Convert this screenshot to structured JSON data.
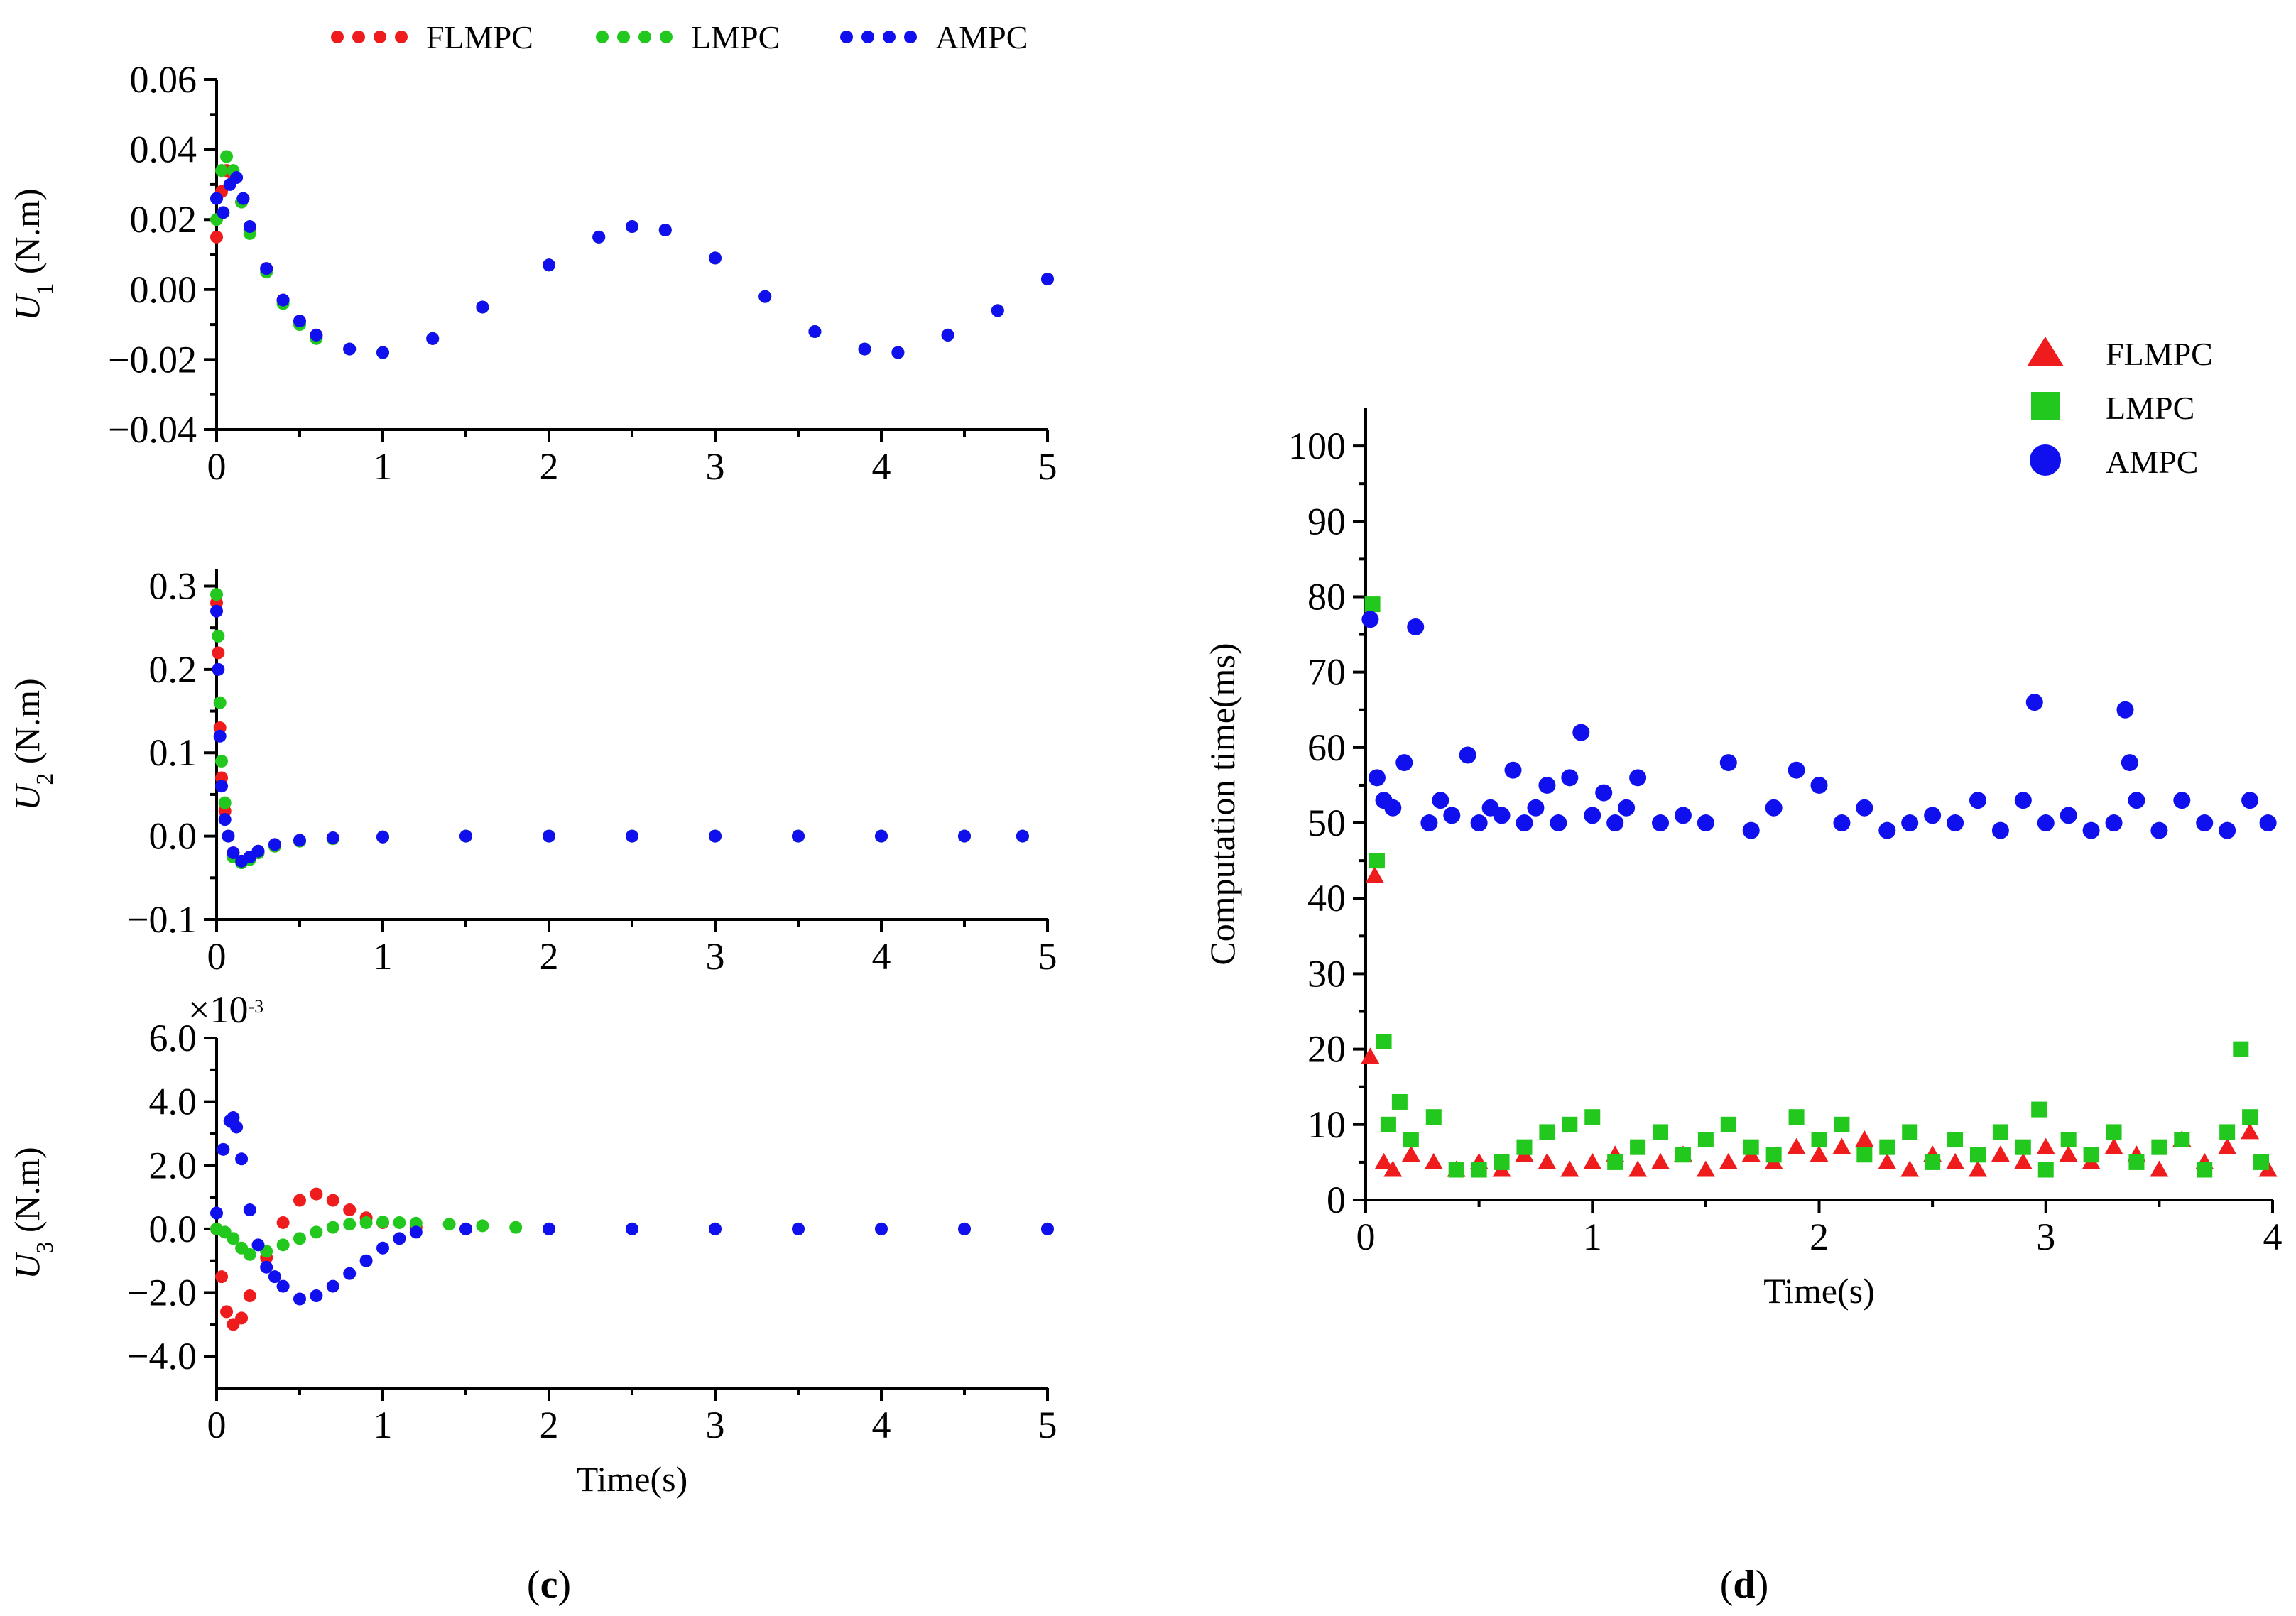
{
  "colors": {
    "FLMPC": "#ee1c1c",
    "LMPC": "#22c81e",
    "AMPC": "#1010ee"
  },
  "panel_labels": {
    "c": "c",
    "d": "d"
  },
  "chart_data": [
    {
      "id": "u1",
      "type": "scatter",
      "ylabel": "U",
      "ylabel_sub": "1",
      "ylabel_unit": " (N.m)",
      "xlabel": "",
      "xlim": [
        0,
        5
      ],
      "ylim": [
        -0.04,
        0.06
      ],
      "xticks": [
        "0",
        "1",
        "2",
        "3",
        "4",
        "5"
      ],
      "yticks": [
        "0.06",
        "0.04",
        "0.02",
        "0.00",
        "-0.02",
        "-0.04"
      ],
      "legend": [
        "FLMPC",
        "LMPC",
        "AMPC"
      ],
      "series": [
        {
          "name": "FLMPC",
          "x": [
            0,
            0.03,
            0.06,
            0.1,
            0.15,
            0.2,
            0.3,
            0.4,
            0.5,
            0.6,
            0.8,
            1.0,
            1.3,
            1.6,
            2.0,
            2.3,
            2.5,
            2.7,
            3.0,
            3.3,
            3.6,
            3.9,
            4.1,
            4.4,
            4.7,
            5.0
          ],
          "y": [
            0.015,
            0.028,
            0.034,
            0.033,
            0.025,
            0.017,
            0.006,
            -0.003,
            -0.009,
            -0.013,
            -0.017,
            -0.018,
            -0.014,
            -0.005,
            0.007,
            0.015,
            0.018,
            0.017,
            0.009,
            -0.002,
            -0.012,
            -0.017,
            -0.018,
            -0.013,
            -0.006,
            0.003
          ]
        },
        {
          "name": "LMPC",
          "x": [
            0,
            0.03,
            0.06,
            0.1,
            0.15,
            0.2,
            0.3,
            0.4,
            0.5,
            0.6,
            0.8,
            1.0,
            1.3,
            1.6,
            2.0,
            2.3,
            2.5,
            2.7,
            3.0,
            3.3,
            3.6,
            3.9,
            4.1,
            4.4,
            4.7,
            5.0
          ],
          "y": [
            0.02,
            0.034,
            0.038,
            0.034,
            0.025,
            0.016,
            0.005,
            -0.004,
            -0.01,
            -0.014,
            -0.017,
            -0.018,
            -0.014,
            -0.005,
            0.007,
            0.015,
            0.018,
            0.017,
            0.009,
            -0.002,
            -0.012,
            -0.017,
            -0.018,
            -0.013,
            -0.006,
            0.003
          ]
        },
        {
          "name": "AMPC",
          "x": [
            0,
            0.04,
            0.08,
            0.12,
            0.16,
            0.2,
            0.3,
            0.4,
            0.5,
            0.6,
            0.8,
            1.0,
            1.3,
            1.6,
            2.0,
            2.3,
            2.5,
            2.7,
            3.0,
            3.3,
            3.6,
            3.9,
            4.1,
            4.4,
            4.7,
            5.0
          ],
          "y": [
            0.026,
            0.022,
            0.03,
            0.032,
            0.026,
            0.018,
            0.006,
            -0.003,
            -0.009,
            -0.013,
            -0.017,
            -0.018,
            -0.014,
            -0.005,
            0.007,
            0.015,
            0.018,
            0.017,
            0.009,
            -0.002,
            -0.012,
            -0.017,
            -0.018,
            -0.013,
            -0.006,
            0.003
          ]
        }
      ]
    },
    {
      "id": "u2",
      "type": "scatter",
      "ylabel": "U",
      "ylabel_sub": "2",
      "ylabel_unit": " (N.m)",
      "xlabel": "",
      "xlim": [
        0,
        5
      ],
      "ylim": [
        -0.1,
        0.32
      ],
      "xticks": [
        "0",
        "1",
        "2",
        "3",
        "4",
        "5"
      ],
      "yticks": [
        "0.3",
        "0.2",
        "0.1",
        "0.0",
        "-0.1"
      ],
      "series": [
        {
          "name": "FLMPC",
          "x": [
            0,
            0.01,
            0.02,
            0.03,
            0.05,
            0.07,
            0.1,
            0.15,
            0.2,
            0.25,
            0.35,
            0.5,
            0.7,
            1.0,
            1.5,
            2.0,
            2.5,
            3.0,
            3.5,
            4.0,
            4.5,
            4.85
          ],
          "y": [
            0.28,
            0.22,
            0.13,
            0.07,
            0.03,
            0.0,
            -0.02,
            -0.03,
            -0.025,
            -0.02,
            -0.012,
            -0.006,
            -0.003,
            -0.001,
            0,
            0,
            0,
            0,
            0,
            0,
            0,
            0
          ]
        },
        {
          "name": "LMPC",
          "x": [
            0,
            0.01,
            0.02,
            0.03,
            0.05,
            0.07,
            0.1,
            0.15,
            0.2,
            0.25,
            0.35,
            0.5,
            0.7,
            1.0,
            1.5,
            2.0,
            2.5,
            3.0,
            3.5,
            4.0,
            4.5,
            4.85
          ],
          "y": [
            0.29,
            0.24,
            0.16,
            0.09,
            0.04,
            0.0,
            -0.025,
            -0.032,
            -0.028,
            -0.02,
            -0.012,
            -0.006,
            -0.003,
            -0.001,
            0,
            0,
            0,
            0,
            0,
            0,
            0,
            0
          ]
        },
        {
          "name": "AMPC",
          "x": [
            0,
            0.01,
            0.02,
            0.03,
            0.05,
            0.07,
            0.1,
            0.15,
            0.2,
            0.25,
            0.35,
            0.5,
            0.7,
            1.0,
            1.5,
            2.0,
            2.5,
            3.0,
            3.5,
            4.0,
            4.5,
            4.85
          ],
          "y": [
            0.27,
            0.2,
            0.12,
            0.06,
            0.02,
            0.0,
            -0.02,
            -0.03,
            -0.025,
            -0.018,
            -0.01,
            -0.005,
            -0.002,
            -0.001,
            0,
            0,
            0,
            0,
            0,
            0,
            0,
            0
          ]
        }
      ]
    },
    {
      "id": "u3",
      "type": "scatter",
      "ylabel": "U",
      "ylabel_sub": "3",
      "ylabel_unit": " (N.m)",
      "xlabel": "Time(s)",
      "xlim": [
        0,
        5
      ],
      "ylim": [
        -5.0,
        6.0
      ],
      "xticks": [
        "0",
        "1",
        "2",
        "3",
        "4",
        "5"
      ],
      "yticks": [
        "6.0",
        "4.0",
        "2.0",
        "0.0",
        "-2.0",
        "-4.0"
      ],
      "multiplier": "×10",
      "multiplier_exp": "-3",
      "series": [
        {
          "name": "FLMPC",
          "x": [
            0,
            0.03,
            0.06,
            0.1,
            0.15,
            0.2,
            0.3,
            0.4,
            0.5,
            0.6,
            0.7,
            0.8,
            0.9,
            1.0,
            1.2,
            1.5,
            2.0,
            2.5,
            3.0,
            3.5,
            4.0,
            4.5,
            5.0
          ],
          "y": [
            0,
            -1.5,
            -2.6,
            -3.0,
            -2.8,
            -2.1,
            -0.9,
            0.2,
            0.9,
            1.1,
            0.9,
            0.6,
            0.35,
            0.2,
            0.05,
            0,
            0,
            0,
            0,
            0,
            0,
            0,
            0
          ]
        },
        {
          "name": "LMPC",
          "x": [
            0,
            0.05,
            0.1,
            0.15,
            0.2,
            0.3,
            0.4,
            0.5,
            0.6,
            0.7,
            0.8,
            0.9,
            1.0,
            1.1,
            1.2,
            1.4,
            1.6,
            1.8,
            2.0,
            2.5,
            3.0,
            3.5,
            4.0,
            4.5,
            5.0
          ],
          "y": [
            0,
            -0.1,
            -0.3,
            -0.6,
            -0.8,
            -0.7,
            -0.5,
            -0.3,
            -0.1,
            0.05,
            0.15,
            0.2,
            0.22,
            0.2,
            0.18,
            0.15,
            0.1,
            0.05,
            0,
            0,
            0,
            0,
            0,
            0,
            0
          ]
        },
        {
          "name": "AMPC",
          "x": [
            0,
            0.04,
            0.08,
            0.1,
            0.12,
            0.15,
            0.2,
            0.25,
            0.3,
            0.35,
            0.4,
            0.5,
            0.6,
            0.7,
            0.8,
            0.9,
            1.0,
            1.1,
            1.2,
            1.5,
            2.0,
            2.5,
            3.0,
            3.5,
            4.0,
            4.5,
            5.0
          ],
          "y": [
            0.5,
            2.5,
            3.4,
            3.5,
            3.2,
            2.2,
            0.6,
            -0.5,
            -1.2,
            -1.5,
            -1.8,
            -2.2,
            -2.1,
            -1.8,
            -1.4,
            -1.0,
            -0.6,
            -0.3,
            -0.1,
            0,
            0,
            0,
            0,
            0,
            0,
            0,
            0
          ]
        }
      ]
    },
    {
      "id": "time",
      "type": "scatter",
      "ylabel": "Computation  time(ms)",
      "xlabel": "Time(s)",
      "xlim": [
        0,
        4
      ],
      "ylim": [
        0,
        105
      ],
      "xticks": [
        "0",
        "1",
        "2",
        "3",
        "4"
      ],
      "yticks": [
        "100",
        "90",
        "80",
        "70",
        "60",
        "50",
        "40",
        "30",
        "20",
        "10",
        "0"
      ],
      "legend": [
        "FLMPC",
        "LMPC",
        "AMPC"
      ],
      "series": [
        {
          "name": "FLMPC",
          "marker": "triangle",
          "x": [
            0.02,
            0.04,
            0.08,
            0.12,
            0.2,
            0.3,
            0.4,
            0.5,
            0.6,
            0.7,
            0.8,
            0.9,
            1.0,
            1.1,
            1.2,
            1.3,
            1.4,
            1.5,
            1.6,
            1.7,
            1.8,
            1.9,
            2.0,
            2.1,
            2.2,
            2.3,
            2.4,
            2.5,
            2.6,
            2.7,
            2.8,
            2.9,
            3.0,
            3.1,
            3.2,
            3.3,
            3.4,
            3.5,
            3.6,
            3.7,
            3.8,
            3.9,
            3.98
          ],
          "y": [
            19,
            43,
            5,
            4,
            6,
            5,
            4,
            5,
            4,
            6,
            5,
            4,
            5,
            6,
            4,
            5,
            6,
            4,
            5,
            6,
            5,
            7,
            6,
            7,
            8,
            5,
            4,
            6,
            5,
            4,
            6,
            5,
            7,
            6,
            5,
            7,
            6,
            4,
            8,
            5,
            7,
            9,
            4
          ]
        },
        {
          "name": "LMPC",
          "marker": "square",
          "x": [
            0.03,
            0.05,
            0.08,
            0.1,
            0.15,
            0.2,
            0.3,
            0.4,
            0.5,
            0.6,
            0.7,
            0.8,
            0.9,
            1.0,
            1.1,
            1.2,
            1.3,
            1.4,
            1.5,
            1.6,
            1.7,
            1.8,
            1.9,
            2.0,
            2.1,
            2.2,
            2.3,
            2.4,
            2.5,
            2.6,
            2.7,
            2.8,
            2.9,
            2.97,
            3.0,
            3.1,
            3.2,
            3.3,
            3.4,
            3.5,
            3.6,
            3.7,
            3.8,
            3.86,
            3.9,
            3.95
          ],
          "y": [
            79,
            45,
            21,
            10,
            13,
            8,
            11,
            4,
            4,
            5,
            7,
            9,
            10,
            11,
            5,
            7,
            9,
            6,
            8,
            10,
            7,
            6,
            11,
            8,
            10,
            6,
            7,
            9,
            5,
            8,
            6,
            9,
            7,
            12,
            4,
            8,
            6,
            9,
            5,
            7,
            8,
            4,
            9,
            20,
            11,
            5
          ]
        },
        {
          "name": "AMPC",
          "marker": "circle",
          "x": [
            0.02,
            0.05,
            0.08,
            0.12,
            0.17,
            0.22,
            0.28,
            0.33,
            0.38,
            0.45,
            0.5,
            0.55,
            0.6,
            0.65,
            0.7,
            0.75,
            0.8,
            0.85,
            0.9,
            0.95,
            1.0,
            1.05,
            1.1,
            1.15,
            1.2,
            1.3,
            1.4,
            1.5,
            1.6,
            1.7,
            1.8,
            1.9,
            2.0,
            2.1,
            2.2,
            2.3,
            2.4,
            2.5,
            2.6,
            2.7,
            2.8,
            2.9,
            2.95,
            3.0,
            3.1,
            3.2,
            3.3,
            3.35,
            3.37,
            3.4,
            3.5,
            3.6,
            3.7,
            3.8,
            3.9,
            3.98
          ],
          "y": [
            77,
            56,
            53,
            52,
            58,
            76,
            50,
            53,
            51,
            59,
            50,
            52,
            51,
            57,
            50,
            52,
            55,
            50,
            56,
            62,
            51,
            54,
            50,
            52,
            56,
            50,
            51,
            50,
            58,
            49,
            52,
            57,
            55,
            50,
            52,
            49,
            50,
            51,
            50,
            53,
            49,
            53,
            66,
            50,
            51,
            49,
            50,
            65,
            58,
            53,
            49,
            53,
            50,
            49,
            53,
            50
          ]
        }
      ]
    }
  ]
}
